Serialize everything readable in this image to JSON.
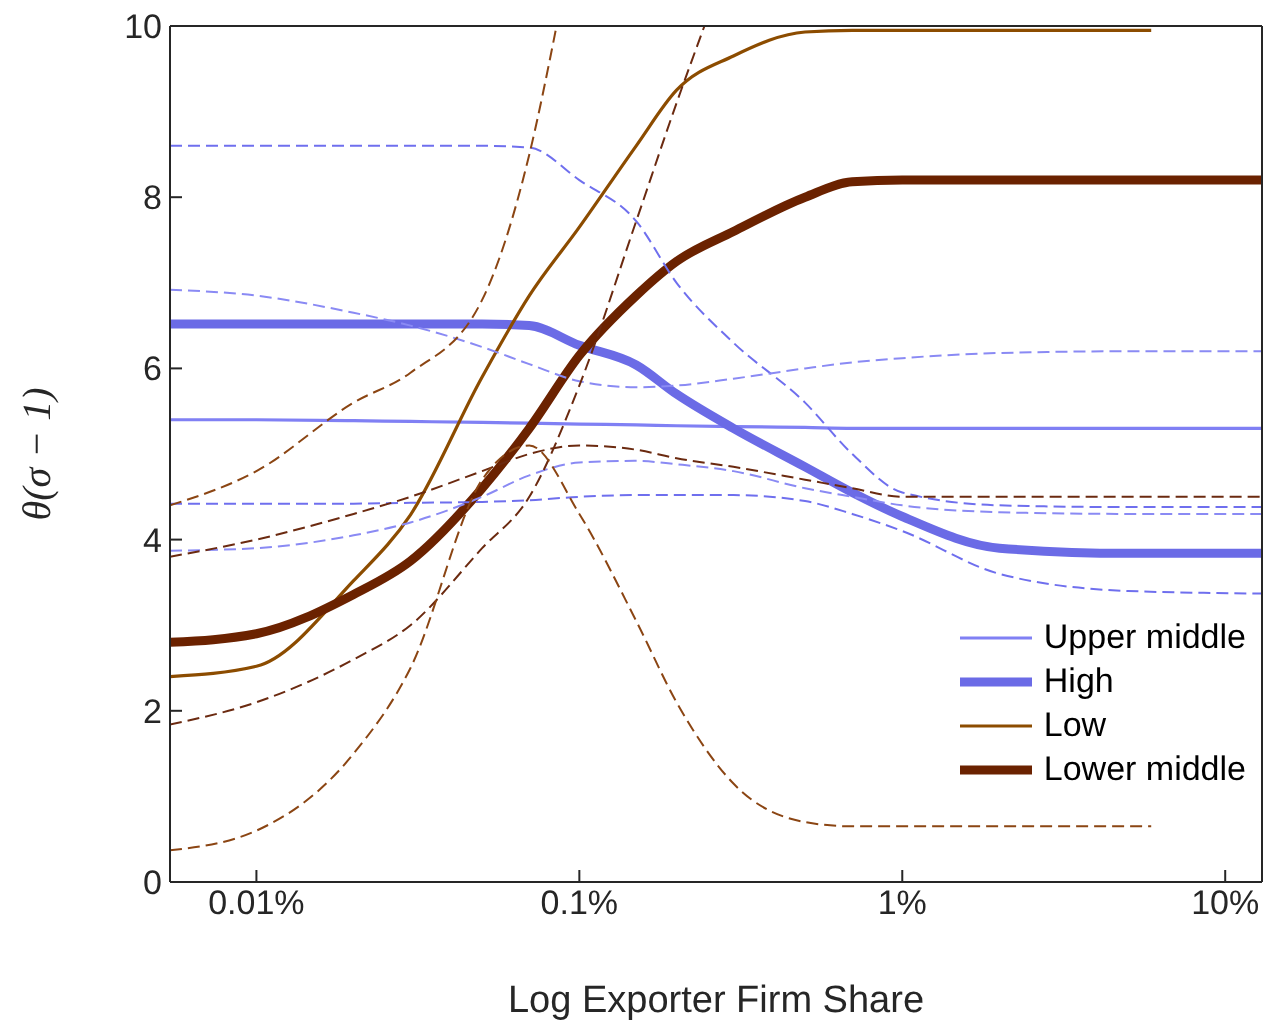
{
  "chart_data": {
    "type": "line",
    "xlabel": "Log Exporter Firm Share",
    "ylabel": "θ(σ − 1)",
    "log": "x",
    "legend": "bottom right",
    "line_style": "solid",
    "x": [
      0.0054,
      0.01,
      0.02,
      0.03,
      0.05,
      0.07,
      0.1,
      0.15,
      0.2,
      0.3,
      0.5,
      0.7,
      1,
      2,
      5,
      13
    ],
    "xlim": [
      0.0054,
      13
    ],
    "xticks": [
      {
        "value": 0.01,
        "label": "0.01%"
      },
      {
        "value": 0.1,
        "label": "0.1%"
      },
      {
        "value": 1,
        "label": "1%"
      },
      {
        "value": 10,
        "label": "10%"
      }
    ],
    "ylim": [
      0,
      10
    ],
    "yticks": [
      0,
      2,
      4,
      6,
      8,
      10
    ],
    "series": [
      {
        "name": "Upper middle",
        "color": "#8080f4",
        "values": [
          5.4,
          5.4,
          5.39,
          5.38,
          5.37,
          5.36,
          5.35,
          5.34,
          5.33,
          5.32,
          5.31,
          5.3,
          5.3,
          5.3,
          5.3,
          5.3
        ]
      },
      {
        "name": "High",
        "color": "#6b6be6",
        "values": [
          6.52,
          6.52,
          6.52,
          6.52,
          6.52,
          6.5,
          6.27,
          6.04,
          5.7,
          5.3,
          4.85,
          4.55,
          4.27,
          3.9,
          3.84,
          3.84
        ]
      },
      {
        "name": "Low",
        "color": "#8c4c00",
        "x": [
          0.0054,
          0.01,
          0.02,
          0.03,
          0.05,
          0.07,
          0.1,
          0.15,
          0.2,
          0.3,
          0.5,
          0.7,
          1,
          2,
          5.9
        ],
        "values": [
          2.4,
          2.52,
          3.52,
          4.29,
          5.9,
          6.85,
          7.65,
          8.6,
          9.25,
          9.65,
          9.93,
          9.95,
          9.95,
          9.95,
          9.95
        ]
      },
      {
        "name": "Lower middle",
        "color": "#6b2200",
        "values": [
          2.8,
          2.9,
          3.36,
          3.75,
          4.6,
          5.3,
          6.15,
          6.85,
          7.25,
          7.6,
          8.0,
          8.18,
          8.2,
          8.2,
          8.2,
          8.2
        ]
      },
      {
        "color": "#6f6fee",
        "line_style": "dashed",
        "values": [
          8.6,
          8.6,
          8.6,
          8.6,
          8.6,
          8.58,
          8.2,
          7.72,
          7.0,
          6.3,
          5.6,
          5.0,
          4.55,
          4.4,
          4.38,
          4.38
        ]
      },
      {
        "color": "#6f6fee",
        "line_style": "dashed",
        "values": [
          4.42,
          4.42,
          4.42,
          4.43,
          4.44,
          4.46,
          4.5,
          4.52,
          4.52,
          4.52,
          4.45,
          4.3,
          4.1,
          3.6,
          3.4,
          3.37
        ]
      },
      {
        "color": "#8a8af4",
        "line_style": "dashed",
        "values": [
          6.92,
          6.85,
          6.65,
          6.5,
          6.25,
          6.05,
          5.85,
          5.78,
          5.8,
          5.88,
          6.0,
          6.07,
          6.12,
          6.18,
          6.2,
          6.2
        ]
      },
      {
        "color": "#8a8af4",
        "line_style": "dashed",
        "values": [
          3.87,
          3.9,
          4.05,
          4.2,
          4.5,
          4.75,
          4.9,
          4.92,
          4.88,
          4.8,
          4.6,
          4.5,
          4.4,
          4.32,
          4.3,
          4.3
        ]
      },
      {
        "color": "#8b4513",
        "line_style": "dashed",
        "x": [
          0.0054,
          0.01,
          0.02,
          0.03,
          0.05,
          0.07,
          0.085
        ],
        "values": [
          4.4,
          4.8,
          5.6,
          5.95,
          6.8,
          8.5,
          10
        ]
      },
      {
        "color": "#6b2a10",
        "line_style": "dashed",
        "values": [
          3.8,
          4.0,
          4.3,
          4.5,
          4.8,
          5.0,
          5.1,
          5.05,
          4.95,
          4.85,
          4.7,
          4.6,
          4.5,
          4.5,
          4.5,
          4.5
        ]
      },
      {
        "color": "#6b2a10",
        "line_style": "dashed",
        "x": [
          0.0054,
          0.01,
          0.02,
          0.03,
          0.05,
          0.07,
          0.1,
          0.15,
          0.2,
          0.244
        ],
        "values": [
          1.84,
          2.1,
          2.6,
          3.0,
          3.9,
          4.5,
          5.8,
          7.72,
          9.1,
          10
        ]
      },
      {
        "color": "#8b4513",
        "line_style": "dashed",
        "x": [
          0.0054,
          0.01,
          0.02,
          0.03,
          0.05,
          0.07,
          0.1,
          0.15,
          0.2,
          0.3,
          0.5,
          0.7,
          1,
          2,
          5.9
        ],
        "values": [
          0.37,
          0.6,
          1.5,
          2.5,
          4.7,
          5.1,
          4.3,
          3.05,
          2.1,
          1.15,
          0.7,
          0.65,
          0.65,
          0.65,
          0.65
        ]
      }
    ]
  }
}
